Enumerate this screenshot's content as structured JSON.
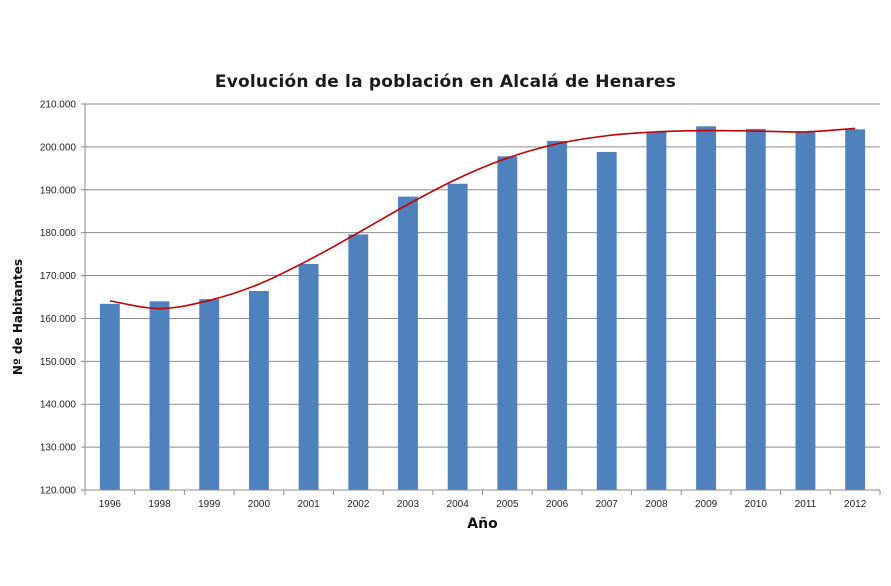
{
  "chart_data": {
    "type": "bar",
    "title": "Evolución de la población en Alcalá de Henares",
    "xlabel": "Año",
    "ylabel": "Nº de Habitantes",
    "categories": [
      "1996",
      "1998",
      "1999",
      "2000",
      "2001",
      "2002",
      "2003",
      "2004",
      "2005",
      "2006",
      "2007",
      "2008",
      "2009",
      "2010",
      "2011",
      "2012"
    ],
    "y_tick_labels": [
      "120.000",
      "130.000",
      "140.000",
      "150.000",
      "160.000",
      "170.000",
      "180.000",
      "190.000",
      "200.000",
      "210.000"
    ],
    "ylim": [
      120000,
      210000
    ],
    "grid": true,
    "series": [
      {
        "type": "bar",
        "color": "#4f81bd",
        "values": [
          163400,
          164000,
          164500,
          166400,
          172700,
          179600,
          188400,
          191400,
          197800,
          201400,
          198800,
          203600,
          204800,
          204200,
          203600,
          204100
        ]
      },
      {
        "type": "line",
        "smooth": true,
        "color": "#c00000",
        "values": [
          164100,
          162300,
          164200,
          168000,
          173600,
          180000,
          186600,
          192600,
          197400,
          200700,
          202600,
          203500,
          203800,
          203700,
          203500,
          204300
        ]
      }
    ]
  }
}
